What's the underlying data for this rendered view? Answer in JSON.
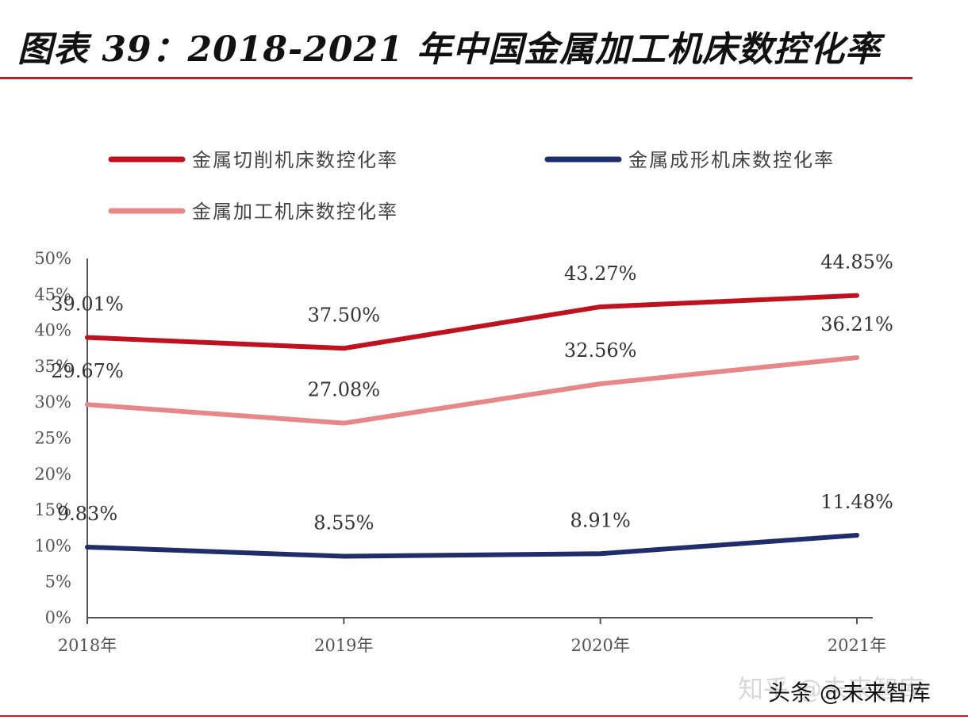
{
  "page_title": "图表 39：2018-2021 年中国金属加工机床数控化率",
  "watermark": "知乎 @未来智库",
  "credit": "头条 @未来智库",
  "chart_data": {
    "type": "line",
    "title": "图表 39：2018-2021 年中国金属加工机床数控化率",
    "categories": [
      "2018年",
      "2019年",
      "2020年",
      "2021年"
    ],
    "ylim": [
      0,
      50
    ],
    "yticks": [
      0,
      5,
      10,
      15,
      20,
      25,
      30,
      35,
      40,
      45,
      50
    ],
    "ytick_labels": [
      "0%",
      "5%",
      "10%",
      "15%",
      "20%",
      "25%",
      "30%",
      "35%",
      "40%",
      "45%",
      "50%"
    ],
    "legend_position": "top",
    "grid": false,
    "series": [
      {
        "name": "金属切削机床数控化率",
        "color": "#c0111f",
        "values": [
          39.01,
          37.5,
          43.27,
          44.85
        ],
        "labels": [
          "39.01%",
          "37.50%",
          "43.27%",
          "44.85%"
        ]
      },
      {
        "name": "金属成形机床数控化率",
        "color": "#1f2d6b",
        "values": [
          9.83,
          8.55,
          8.91,
          11.48
        ],
        "labels": [
          "9.83%",
          "8.55%",
          "8.91%",
          "11.48%"
        ]
      },
      {
        "name": "金属加工机床数控化率",
        "color": "#e88787",
        "values": [
          29.67,
          27.08,
          32.56,
          36.21
        ],
        "labels": [
          "29.67%",
          "27.08%",
          "32.56%",
          "36.21%"
        ]
      }
    ]
  }
}
